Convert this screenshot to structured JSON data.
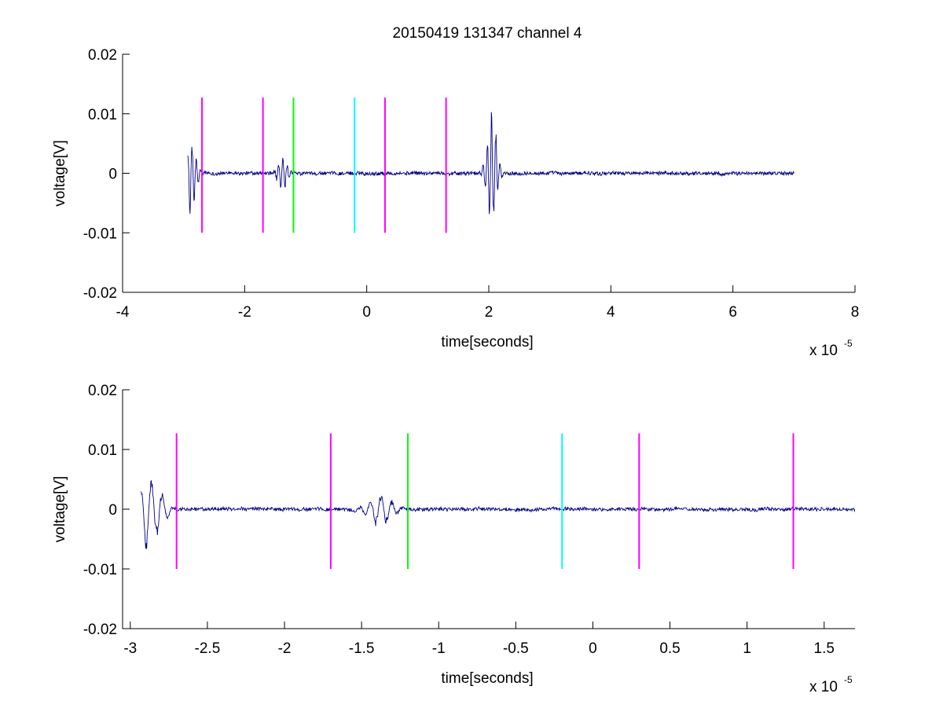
{
  "figure_title": "20150419 131347 channel 4",
  "chart_data": [
    {
      "type": "line",
      "title": "20150419 131347 channel 4",
      "xlabel": "time[seconds]",
      "ylabel": "voltage[V]",
      "x_exponent_base": "x 10",
      "x_exponent_power": "-5",
      "xlim": [
        -4,
        8
      ],
      "ylim": [
        -0.02,
        0.02
      ],
      "xticks": [
        -4,
        -2,
        0,
        2,
        4,
        6,
        8
      ],
      "xtick_labels": [
        "-4",
        "-2",
        "0",
        "2",
        "4",
        "6",
        "8"
      ],
      "yticks": [
        -0.02,
        -0.01,
        0,
        0.01,
        0.02
      ],
      "ytick_labels": [
        "-0.02",
        "-0.01",
        "0",
        "0.01",
        "0.02"
      ],
      "grid": false,
      "signal": {
        "color": "#00008b",
        "x_start": -2.93,
        "x_end": 7.0,
        "baseline": 0,
        "noise_amplitude": 0.0004,
        "bursts": [
          {
            "center": -2.88,
            "peak_max": 0.0054,
            "peak_min": -0.0073
          },
          {
            "center": -1.38,
            "peak_max": 0.0027,
            "peak_min": -0.0032
          },
          {
            "center": 2.05,
            "peak_max": 0.0115,
            "peak_min": -0.0093
          }
        ]
      },
      "markers": [
        {
          "x": -2.7,
          "color": "#ff00ff",
          "y_range": [
            -0.01,
            0.0127
          ]
        },
        {
          "x": -1.7,
          "color": "#ff00ff",
          "y_range": [
            -0.01,
            0.0127
          ]
        },
        {
          "x": -1.2,
          "color": "#00ff00",
          "y_range": [
            -0.01,
            0.0127
          ]
        },
        {
          "x": -0.2,
          "color": "#00ffff",
          "y_range": [
            -0.01,
            0.0127
          ]
        },
        {
          "x": 0.3,
          "color": "#ff00ff",
          "y_range": [
            -0.01,
            0.0127
          ]
        },
        {
          "x": 1.3,
          "color": "#ff00ff",
          "y_range": [
            -0.01,
            0.0127
          ]
        }
      ]
    },
    {
      "type": "line",
      "title": "",
      "xlabel": "time[seconds]",
      "ylabel": "voltage[V]",
      "x_exponent_base": "x 10",
      "x_exponent_power": "-5",
      "xlim": [
        -3.05,
        1.7
      ],
      "ylim": [
        -0.02,
        0.02
      ],
      "xticks": [
        -3,
        -2.5,
        -2,
        -1.5,
        -1,
        -0.5,
        0,
        0.5,
        1,
        1.5
      ],
      "xtick_labels": [
        "-3",
        "-2.5",
        "-2",
        "-1.5",
        "-1",
        "-0.5",
        "0",
        "0.5",
        "1",
        "1.5"
      ],
      "yticks": [
        -0.02,
        -0.01,
        0,
        0.01,
        0.02
      ],
      "ytick_labels": [
        "-0.02",
        "-0.01",
        "0",
        "0.01",
        "0.02"
      ],
      "grid": false,
      "signal": {
        "color": "#00008b",
        "x_start": -2.93,
        "x_end": 1.7,
        "baseline": 0,
        "noise_amplitude": 0.0004,
        "bursts": [
          {
            "center": -2.88,
            "peak_max": 0.0054,
            "peak_min": -0.0073
          },
          {
            "center": -1.38,
            "peak_max": 0.0027,
            "peak_min": -0.0032
          }
        ]
      },
      "markers": [
        {
          "x": -2.7,
          "color": "#ff00ff",
          "y_range": [
            -0.01,
            0.0127
          ]
        },
        {
          "x": -1.7,
          "color": "#ff00ff",
          "y_range": [
            -0.01,
            0.0127
          ]
        },
        {
          "x": -1.2,
          "color": "#00ff00",
          "y_range": [
            -0.01,
            0.0127
          ]
        },
        {
          "x": -0.2,
          "color": "#00ffff",
          "y_range": [
            -0.01,
            0.0127
          ]
        },
        {
          "x": 0.3,
          "color": "#ff00ff",
          "y_range": [
            -0.01,
            0.0127
          ]
        },
        {
          "x": 1.3,
          "color": "#ff00ff",
          "y_range": [
            -0.01,
            0.0127
          ]
        }
      ]
    }
  ]
}
